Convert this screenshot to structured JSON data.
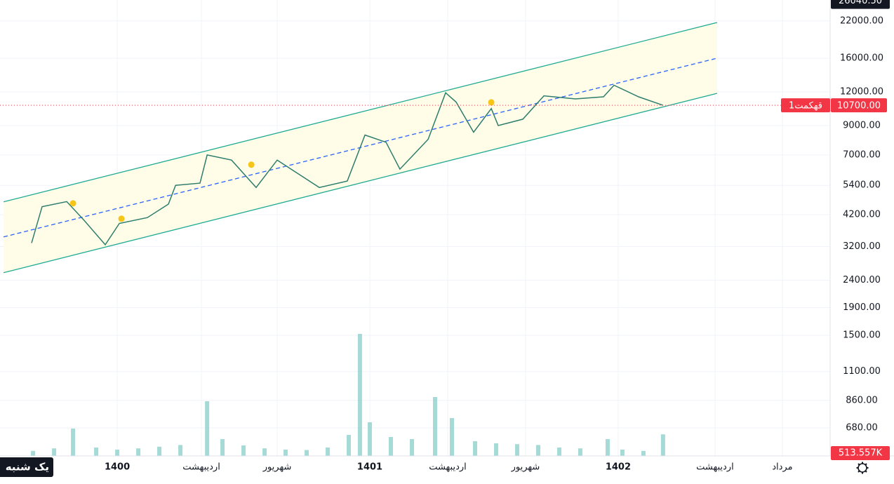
{
  "chart_data": {
    "type": "line",
    "log_scale": true,
    "grid": true,
    "xlim": [
      -5.57,
      33.87
    ],
    "xticks": [
      {
        "value": 0,
        "label": "1400"
      },
      {
        "value": 4,
        "label": "اردیبهشت"
      },
      {
        "value": 7.6,
        "label": "شهریور"
      },
      {
        "value": 12,
        "label": "1401"
      },
      {
        "value": 15.7,
        "label": "اردیبهشت"
      },
      {
        "value": 19.4,
        "label": "شهریور"
      },
      {
        "value": 23.8,
        "label": "1402"
      },
      {
        "value": 28.4,
        "label": "اردیبهشت"
      },
      {
        "value": 31.6,
        "label": "مرداد"
      }
    ],
    "ylim": [
      535,
      26300
    ],
    "yticks": [
      {
        "value": 22000,
        "label": "22000.00"
      },
      {
        "value": 16000,
        "label": "16000.00"
      },
      {
        "value": 12000,
        "label": "12000.00"
      },
      {
        "value": 9000,
        "label": "9000.00"
      },
      {
        "value": 7000,
        "label": "7000.00"
      },
      {
        "value": 5400,
        "label": "5400.00"
      },
      {
        "value": 4200,
        "label": "4200.00"
      },
      {
        "value": 3200,
        "label": "3200.00"
      },
      {
        "value": 2400,
        "label": "2400.00"
      },
      {
        "value": 1900,
        "label": "1900.00"
      },
      {
        "value": 1500,
        "label": "1500.00"
      },
      {
        "value": 1100,
        "label": "1100.00"
      },
      {
        "value": 860,
        "label": "860.00"
      },
      {
        "value": 680,
        "label": "680.00"
      }
    ],
    "series": [
      {
        "color": "#2e7d6e",
        "x": [
          -4.07,
          -3.57,
          -2.4,
          -1.57,
          -0.57,
          0.1,
          1.43,
          2.43,
          2.77,
          3.93,
          4.27,
          5.43,
          6.6,
          7.6,
          9.6,
          10.93,
          11.77,
          12.77,
          13.43,
          14.77,
          15.6,
          16.1,
          16.93,
          17.77,
          18.1,
          19.27,
          20.27,
          21.77,
          23.1,
          23.6,
          24.77,
          25.93
        ],
        "values": [
          3300,
          4500,
          4700,
          4000,
          3250,
          3900,
          4100,
          4600,
          5400,
          5500,
          7000,
          6700,
          5300,
          6700,
          5300,
          5600,
          8300,
          7800,
          6200,
          8000,
          11900,
          11000,
          8500,
          10400,
          9000,
          9500,
          11600,
          11300,
          11500,
          12700,
          11500,
          10700
        ]
      }
    ],
    "channel": {
      "color": "#22ab94",
      "fill": "#fffde7",
      "middle_color": "#2962ff",
      "x": [
        -5.4,
        28.5
      ],
      "upper": [
        4690,
        21700
      ],
      "middle": [
        3475,
        16000
      ],
      "lower": [
        2560,
        11850
      ]
    },
    "events": {
      "color": "#f5c518",
      "x": [
        -2.1,
        0.2,
        6.37,
        17.77
      ],
      "values": [
        4630,
        4060,
        6440,
        10970
      ]
    },
    "volume": {
      "color": "#80cbc4",
      "max": 3000,
      "x": [
        -4,
        -3,
        -2.1,
        -1,
        0,
        1,
        2,
        3,
        4.27,
        5,
        6,
        7,
        8,
        9,
        10,
        11,
        11.53,
        12,
        13,
        14,
        15.1,
        15.9,
        17,
        18,
        19,
        20,
        21,
        22,
        23.3,
        24,
        25,
        25.93
      ],
      "values": [
        120,
        180,
        650,
        200,
        150,
        180,
        220,
        260,
        1300,
        400,
        250,
        180,
        150,
        140,
        200,
        500,
        2900,
        800,
        450,
        400,
        1400,
        900,
        350,
        300,
        280,
        260,
        200,
        180,
        400,
        150,
        120,
        513.557
      ],
      "last": {
        "value": 513.557,
        "label": "513.557K"
      }
    },
    "last_price": {
      "value": 10700,
      "label": "10700.00",
      "name": "قهکمت1",
      "color": "#f23645"
    },
    "top_price": {
      "value": 26040.5,
      "label": "26040.50"
    },
    "crosshair_label": "یک شنبه"
  }
}
